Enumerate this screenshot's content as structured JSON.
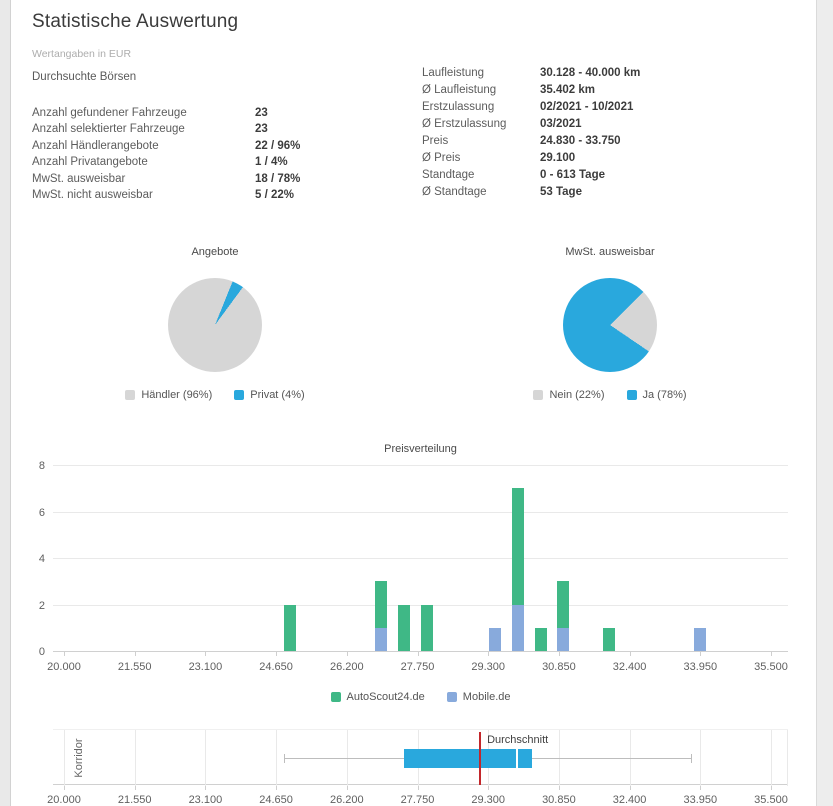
{
  "header": {
    "title": "Statistische Auswertung",
    "subtitle": "Wertangaben in EUR",
    "boersen_label": "Durchsuchte Börsen"
  },
  "stats_left": {
    "rows": [
      {
        "label": "Anzahl gefundener Fahrzeuge",
        "value": "23"
      },
      {
        "label": "Anzahl selektierter Fahrzeuge",
        "value": "23"
      },
      {
        "label": "Anzahl Händlerangebote",
        "value": "22 / 96%"
      },
      {
        "label": "Anzahl Privatangebote",
        "value": "1 / 4%"
      },
      {
        "label": "MwSt. ausweisbar",
        "value": "18 / 78%"
      },
      {
        "label": "MwSt. nicht ausweisbar",
        "value": "5 / 22%"
      }
    ]
  },
  "stats_right": {
    "rows": [
      {
        "label": "Laufleistung",
        "value": "30.128 - 40.000 km"
      },
      {
        "label": "Ø Laufleistung",
        "value": "35.402 km"
      },
      {
        "label": "Erstzulassung",
        "value": "02/2021 - 10/2021"
      },
      {
        "label": "Ø Erstzulassung",
        "value": "03/2021"
      },
      {
        "label": "Preis",
        "value": "24.830 - 33.750"
      },
      {
        "label": "Ø Preis",
        "value": "29.100"
      },
      {
        "label": "Standtage",
        "value": "0 - 613 Tage"
      },
      {
        "label": "Ø Standtage",
        "value": "53 Tage"
      }
    ]
  },
  "chart_data": [
    {
      "type": "pie",
      "title": "Angebote",
      "slices": [
        {
          "label": "Händler (96%)",
          "value": 96,
          "color": "#d6d6d6"
        },
        {
          "label": "Privat (4%)",
          "value": 4,
          "color": "#29a8dd"
        }
      ],
      "start_angle_deg": 22,
      "draw_order": [
        1,
        0
      ],
      "legend_position": "bottom"
    },
    {
      "type": "pie",
      "title": "MwSt. ausweisbar",
      "slices": [
        {
          "label": "Nein (22%)",
          "value": 22,
          "color": "#d6d6d6"
        },
        {
          "label": "Ja (78%)",
          "value": 78,
          "color": "#29a8dd"
        }
      ],
      "start_angle_deg": 45,
      "draw_order": [
        0,
        1
      ],
      "legend_position": "bottom"
    },
    {
      "type": "bar",
      "title": "Preisverteilung",
      "stacked": true,
      "x_range": [
        20000,
        35500
      ],
      "x_ticks": [
        "20.000",
        "21.550",
        "23.100",
        "24.650",
        "26.200",
        "27.750",
        "29.300",
        "30.850",
        "32.400",
        "33.950",
        "35.500"
      ],
      "ylim": [
        0,
        8
      ],
      "y_ticks": [
        0,
        2,
        4,
        6,
        8
      ],
      "grid": "horizontal",
      "legend_position": "bottom",
      "x_values": [
        24950,
        26950,
        27450,
        27950,
        29450,
        29950,
        30450,
        30950,
        31950,
        33950
      ],
      "series": [
        {
          "name": "AutoScout24.de",
          "color": "#3fb886",
          "values": [
            2,
            2,
            2,
            2,
            0,
            5,
            1,
            2,
            1,
            0
          ]
        },
        {
          "name": "Mobile.de",
          "color": "#88aadc",
          "values": [
            0,
            1,
            0,
            0,
            1,
            2,
            0,
            1,
            0,
            1
          ]
        }
      ]
    },
    {
      "type": "boxplot",
      "label": "Korridor",
      "x_range": [
        20000,
        35500
      ],
      "x_ticks": [
        "20.000",
        "21.550",
        "23.100",
        "24.650",
        "26.200",
        "27.750",
        "29.300",
        "30.850",
        "32.400",
        "33.950",
        "35.500"
      ],
      "grid": "vertical",
      "whisker_min": 24830,
      "whisker_max": 33750,
      "box_from": 27450,
      "box_divider": 29905,
      "box_to": 30250,
      "box_color": "#29a8dd",
      "mean": 29100,
      "mean_label": "Durchschnitt",
      "mean_color": "#c3272b"
    }
  ]
}
